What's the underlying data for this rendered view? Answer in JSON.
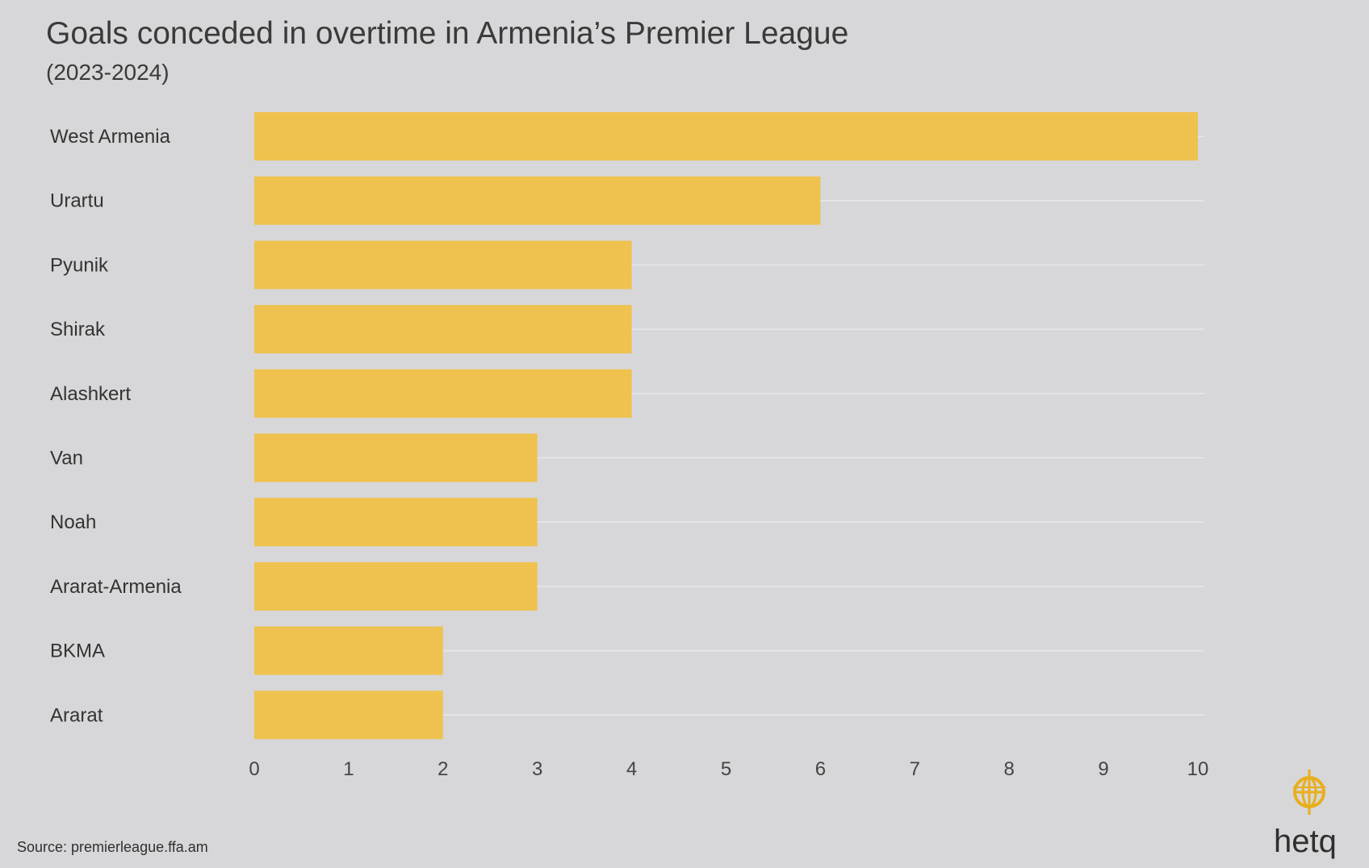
{
  "title": "Goals conceded in overtime in Armenia’s Premier League",
  "subtitle": "(2023-2024)",
  "source": "Source: premierleague.ffa.am",
  "logo": {
    "text": "hetq",
    "icon": "hetq-globe-icon"
  },
  "colors": {
    "bar": "#efc24f",
    "background": "#d7d7d9",
    "logo": "#e9ae1c"
  },
  "chart_data": {
    "type": "bar",
    "orientation": "horizontal",
    "title": "Goals conceded in overtime in Armenia’s Premier League",
    "subtitle": "(2023-2024)",
    "categories": [
      "West Armenia",
      "Urartu",
      "Pyunik",
      "Shirak",
      "Alashkert",
      "Van",
      "Noah",
      "Ararat-Armenia",
      "BKMA",
      "Ararat"
    ],
    "values": [
      10,
      6,
      4,
      4,
      4,
      3,
      3,
      3,
      2,
      2
    ],
    "xlim": [
      0,
      10
    ],
    "xticks": [
      0,
      1,
      2,
      3,
      4,
      5,
      6,
      7,
      8,
      9,
      10
    ],
    "xlabel": "",
    "ylabel": "",
    "grid": "horizontal",
    "legend": "none"
  }
}
